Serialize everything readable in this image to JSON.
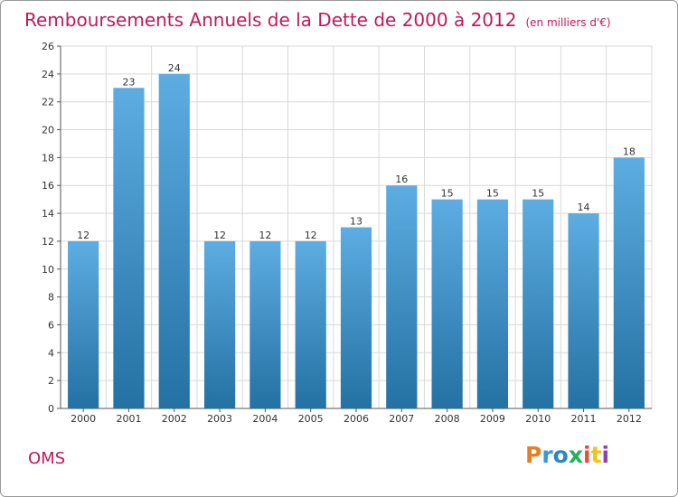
{
  "header": {
    "title": "Remboursements Annuels de la Dette de 2000 à 2012",
    "subtitle": "(en milliers d'€)"
  },
  "footer": {
    "commune": "OMS",
    "logo_text": "Proxiti"
  },
  "colors": {
    "bar_top": "#5dade2",
    "bar_bottom": "#2471a3",
    "title": "#c2185b",
    "grid": "#d9d9d9",
    "logo": [
      "#e67e22",
      "#3498db",
      "#2e86c1",
      "#27ae60",
      "#e74c3c",
      "#f1c40f",
      "#8e44ad"
    ]
  },
  "chart_data": {
    "type": "bar",
    "title": "Remboursements Annuels de la Dette de 2000 à 2012",
    "subtitle": "(en milliers d'€)",
    "categories": [
      "2000",
      "2001",
      "2002",
      "2003",
      "2004",
      "2005",
      "2006",
      "2007",
      "2008",
      "2009",
      "2010",
      "2011",
      "2012"
    ],
    "values": [
      12,
      23,
      24,
      12,
      12,
      12,
      13,
      16,
      15,
      15,
      15,
      14,
      18
    ],
    "ylim": [
      0,
      26
    ],
    "yticks": [
      0,
      2,
      4,
      6,
      8,
      10,
      12,
      14,
      16,
      18,
      20,
      22,
      24,
      26
    ],
    "grid": true,
    "legend": "none"
  }
}
